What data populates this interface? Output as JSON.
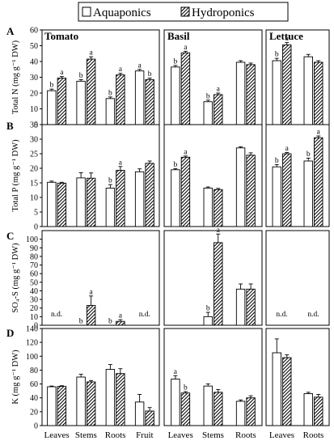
{
  "legend": {
    "items": [
      "Aquaponics",
      "Hydroponics"
    ]
  },
  "row_letters": [
    "A",
    "B",
    "C",
    "D"
  ],
  "crop_titles": [
    "Tomato",
    "Basil",
    "Lettuce"
  ],
  "na_label": "n.d.",
  "chart_data": [
    {
      "type": "bar",
      "panel": "A-Tomato",
      "ylabel": "Total N (mg g⁻¹ DW)",
      "ylim": [
        0,
        60
      ],
      "yticks": [
        0,
        10,
        20,
        30,
        40,
        50,
        60
      ],
      "categories": [
        "Leaves",
        "Stems",
        "Roots",
        "Fruit"
      ],
      "series": [
        {
          "name": "Aquaponics",
          "values": [
            21.5,
            27.5,
            16.5,
            34
          ],
          "errors": [
            1,
            1,
            1,
            1
          ]
        },
        {
          "name": "Hydroponics",
          "values": [
            29.5,
            41.5,
            31.5,
            28.5
          ],
          "errors": [
            1,
            1.5,
            1,
            1
          ]
        }
      ],
      "sig": [
        [
          "b",
          "a"
        ],
        [
          "b",
          "a"
        ],
        [
          "b",
          "a"
        ],
        [
          "a",
          "b"
        ]
      ]
    },
    {
      "type": "bar",
      "panel": "A-Basil",
      "ylim": [
        0,
        60
      ],
      "categories": [
        "Leaves",
        "Stems",
        "Roots"
      ],
      "series": [
        {
          "name": "Aquaponics",
          "values": [
            36.5,
            14.5,
            39.5
          ],
          "errors": [
            1,
            1,
            1
          ]
        },
        {
          "name": "Hydroponics",
          "values": [
            45.5,
            19,
            38
          ],
          "errors": [
            1,
            1,
            1
          ]
        }
      ],
      "sig": [
        [
          "b",
          "a"
        ],
        [
          "b",
          "a"
        ],
        [
          "",
          ""
        ]
      ]
    },
    {
      "type": "bar",
      "panel": "A-Lettuce",
      "ylim": [
        0,
        60
      ],
      "categories": [
        "Leaves",
        "Roots"
      ],
      "series": [
        {
          "name": "Aquaponics",
          "values": [
            40.5,
            43
          ],
          "errors": [
            1.5,
            1.5
          ]
        },
        {
          "name": "Hydroponics",
          "values": [
            50.5,
            39.5
          ],
          "errors": [
            1.5,
            1
          ]
        }
      ],
      "sig": [
        [
          "b",
          "a"
        ],
        [
          "",
          ""
        ]
      ]
    },
    {
      "type": "bar",
      "panel": "B-Tomato",
      "ylabel": "Total P (mg g⁻¹ DW)",
      "ylim": [
        0,
        35
      ],
      "yticks": [
        0,
        5,
        10,
        15,
        20,
        25,
        30,
        35
      ],
      "categories": [
        "Leaves",
        "Stems",
        "Roots",
        "Fruit"
      ],
      "series": [
        {
          "name": "Aquaponics",
          "values": [
            15.2,
            16.7,
            13.2,
            18.8
          ],
          "errors": [
            0.4,
            1.8,
            1.2,
            1
          ]
        },
        {
          "name": "Hydroponics",
          "values": [
            14.9,
            16.6,
            19.3,
            21.7
          ],
          "errors": [
            0.3,
            1.8,
            1.3,
            0.8
          ]
        }
      ],
      "sig": [
        [
          "",
          ""
        ],
        [
          "",
          ""
        ],
        [
          "b",
          "a"
        ],
        [
          "",
          ""
        ]
      ]
    },
    {
      "type": "bar",
      "panel": "B-Basil",
      "ylim": [
        0,
        35
      ],
      "categories": [
        "Leaves",
        "Stems",
        "Roots"
      ],
      "series": [
        {
          "name": "Aquaponics",
          "values": [
            19.5,
            13.2,
            27
          ],
          "errors": [
            0.4,
            0.4,
            0.4
          ]
        },
        {
          "name": "Hydroponics",
          "values": [
            23.8,
            12.7,
            24.5
          ],
          "errors": [
            0.4,
            0.4,
            0.8
          ]
        }
      ],
      "sig": [
        [
          "b",
          "a"
        ],
        [
          "",
          ""
        ],
        [
          "",
          ""
        ]
      ]
    },
    {
      "type": "bar",
      "panel": "B-Lettuce",
      "ylim": [
        0,
        35
      ],
      "categories": [
        "Leaves",
        "Roots"
      ],
      "series": [
        {
          "name": "Aquaponics",
          "values": [
            20.5,
            22.5
          ],
          "errors": [
            0.8,
            1
          ]
        },
        {
          "name": "Hydroponics",
          "values": [
            25,
            30.5
          ],
          "errors": [
            0.4,
            0.6
          ]
        }
      ],
      "sig": [
        [
          "b",
          "a"
        ],
        [
          "b",
          "a"
        ]
      ]
    },
    {
      "type": "bar",
      "panel": "C-Tomato",
      "ylabel": "SO₄-S (mg g⁻¹ DW)",
      "ylim": [
        0,
        110
      ],
      "yticks": [
        0,
        10,
        20,
        30,
        40,
        50,
        60,
        70,
        80,
        90,
        100
      ],
      "categories": [
        "Leaves",
        "Stems",
        "Roots",
        "Fruit"
      ],
      "series": [
        {
          "name": "Aquaponics",
          "values": [
            null,
            0,
            0,
            null
          ],
          "errors": [
            0,
            0,
            0,
            0
          ]
        },
        {
          "name": "Hydroponics",
          "values": [
            null,
            23,
            4.5,
            null
          ],
          "errors": [
            0,
            11,
            2,
            0
          ]
        }
      ],
      "sig": [
        [
          "",
          ""
        ],
        [
          "b",
          "a"
        ],
        [
          "b",
          "a"
        ],
        [
          "",
          ""
        ]
      ],
      "not_detected": [
        true,
        false,
        false,
        true
      ]
    },
    {
      "type": "bar",
      "panel": "C-Basil",
      "ylim": [
        0,
        110
      ],
      "categories": [
        "Leaves",
        "Stems",
        "Roots"
      ],
      "series": [
        {
          "name": "Aquaponics",
          "values": [
            null,
            10,
            42
          ],
          "errors": [
            0,
            5,
            6
          ]
        },
        {
          "name": "Hydroponics",
          "values": [
            null,
            96,
            42
          ],
          "errors": [
            0,
            10,
            6
          ]
        }
      ],
      "sig": [
        [
          "",
          ""
        ],
        [
          "b",
          "a"
        ],
        [
          "",
          ""
        ]
      ],
      "not_detected": [
        false,
        false,
        false
      ]
    },
    {
      "type": "bar",
      "panel": "C-Lettuce",
      "ylim": [
        0,
        110
      ],
      "categories": [
        "Leaves",
        "Roots"
      ],
      "series": [
        {
          "name": "Aquaponics",
          "values": [
            null,
            null
          ],
          "errors": [
            0,
            0
          ]
        },
        {
          "name": "Hydroponics",
          "values": [
            null,
            null
          ],
          "errors": [
            0,
            0
          ]
        }
      ],
      "sig": [
        [
          "",
          ""
        ],
        [
          "",
          ""
        ]
      ],
      "not_detected": [
        true,
        true
      ]
    },
    {
      "type": "bar",
      "panel": "D-Tomato",
      "ylabel": "K (mg g⁻¹ DW)",
      "ylim": [
        0,
        140
      ],
      "yticks": [
        0,
        20,
        40,
        60,
        80,
        100,
        120,
        140
      ],
      "categories": [
        "Leaves",
        "Stems",
        "Roots",
        "Fruit"
      ],
      "series": [
        {
          "name": "Aquaponics",
          "values": [
            56,
            70,
            81,
            34
          ],
          "errors": [
            1,
            4,
            7,
            11
          ]
        },
        {
          "name": "Hydroponics",
          "values": [
            56.5,
            63,
            75,
            21
          ],
          "errors": [
            1,
            2,
            7,
            5
          ]
        }
      ],
      "sig": [
        [
          "",
          ""
        ],
        [
          "",
          ""
        ],
        [
          "",
          ""
        ],
        [
          "",
          ""
        ]
      ]
    },
    {
      "type": "bar",
      "panel": "D-Basil",
      "ylim": [
        0,
        140
      ],
      "categories": [
        "Leaves",
        "Stems",
        "Roots"
      ],
      "series": [
        {
          "name": "Aquaponics",
          "values": [
            67,
            57,
            35
          ],
          "errors": [
            5,
            3,
            2
          ]
        },
        {
          "name": "Hydroponics",
          "values": [
            47,
            48,
            40
          ],
          "errors": [
            2,
            4,
            3
          ]
        }
      ],
      "sig": [
        [
          "a",
          "b"
        ],
        [
          "",
          ""
        ],
        [
          "",
          ""
        ]
      ]
    },
    {
      "type": "bar",
      "panel": "D-Lettuce",
      "ylim": [
        0,
        140
      ],
      "categories": [
        "Leaves",
        "Roots"
      ],
      "series": [
        {
          "name": "Aquaponics",
          "values": [
            105,
            46
          ],
          "errors": [
            20,
            2
          ]
        },
        {
          "name": "Hydroponics",
          "values": [
            98,
            41
          ],
          "errors": [
            4,
            4
          ]
        }
      ],
      "sig": [
        [
          "",
          ""
        ],
        [
          "",
          ""
        ]
      ]
    }
  ]
}
